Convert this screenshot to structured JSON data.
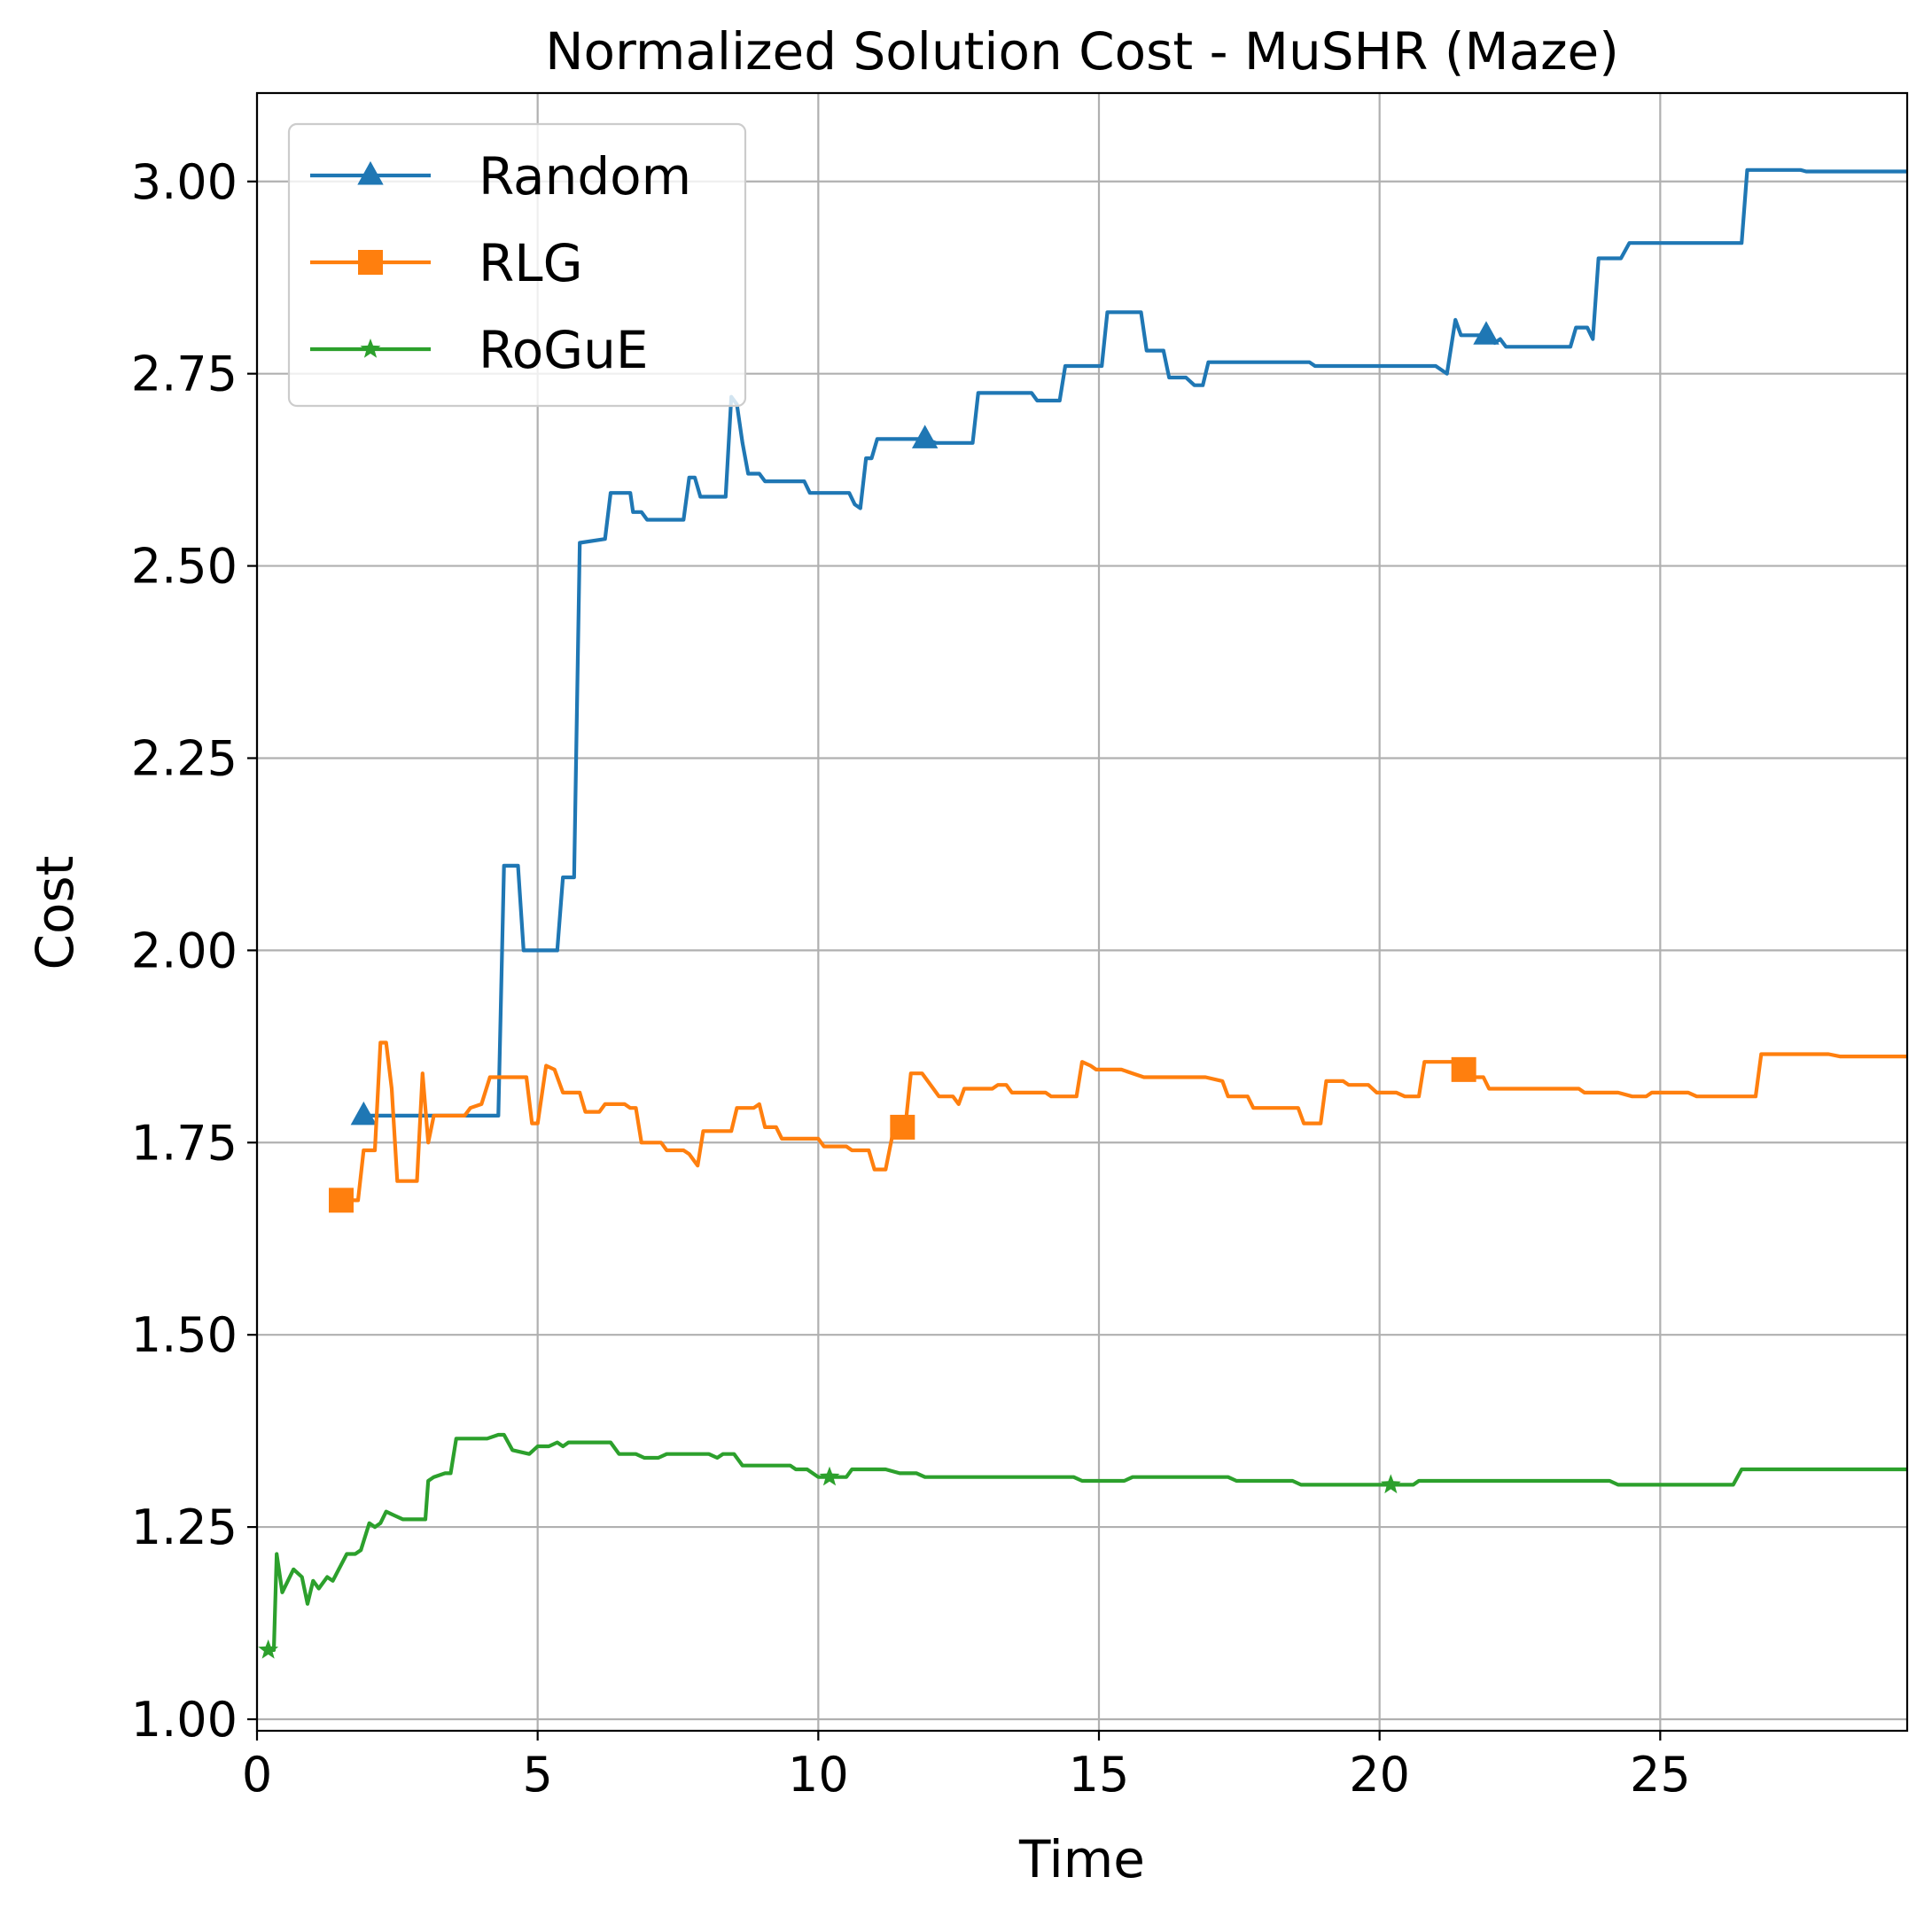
{
  "chart_data": {
    "type": "line",
    "title": "Normalized Solution Cost - MuSHR (Maze)",
    "xlabel": "Time",
    "ylabel": "Cost",
    "xlim": [
      0,
      29.4
    ],
    "ylim": [
      0.985,
      3.115
    ],
    "xticks": [
      0,
      5,
      10,
      15,
      20,
      25
    ],
    "xtick_labels": [
      "0",
      "5",
      "10",
      "15",
      "20",
      "25"
    ],
    "yticks": [
      1.0,
      1.25,
      1.5,
      1.75,
      2.0,
      2.25,
      2.5,
      2.75,
      3.0
    ],
    "ytick_labels": [
      "1.00",
      "1.25",
      "1.50",
      "1.75",
      "2.00",
      "2.25",
      "2.50",
      "2.75",
      "3.00"
    ],
    "grid": true,
    "legend_position": "top-left",
    "series": [
      {
        "name": "Random",
        "color": "#1f77b4",
        "marker": "triangle",
        "marker_x": [
          1.9,
          11.9,
          21.9
        ],
        "points": [
          [
            1.9,
            1.785
          ],
          [
            4.3,
            1.785
          ],
          [
            4.4,
            2.11
          ],
          [
            4.65,
            2.11
          ],
          [
            4.75,
            2.0
          ],
          [
            5.35,
            2.0
          ],
          [
            5.45,
            2.095
          ],
          [
            5.65,
            2.095
          ],
          [
            5.75,
            2.53
          ],
          [
            6.2,
            2.535
          ],
          [
            6.3,
            2.595
          ],
          [
            6.65,
            2.595
          ],
          [
            6.7,
            2.57
          ],
          [
            6.85,
            2.57
          ],
          [
            6.95,
            2.56
          ],
          [
            7.6,
            2.56
          ],
          [
            7.7,
            2.615
          ],
          [
            7.8,
            2.615
          ],
          [
            7.9,
            2.59
          ],
          [
            8.35,
            2.59
          ],
          [
            8.45,
            2.72
          ],
          [
            8.55,
            2.71
          ],
          [
            8.65,
            2.66
          ],
          [
            8.75,
            2.62
          ],
          [
            8.95,
            2.62
          ],
          [
            9.05,
            2.61
          ],
          [
            9.75,
            2.61
          ],
          [
            9.85,
            2.595
          ],
          [
            10.55,
            2.595
          ],
          [
            10.65,
            2.58
          ],
          [
            10.75,
            2.575
          ],
          [
            10.85,
            2.64
          ],
          [
            10.95,
            2.64
          ],
          [
            11.05,
            2.665
          ],
          [
            11.9,
            2.665
          ],
          [
            12.1,
            2.66
          ],
          [
            12.75,
            2.66
          ],
          [
            12.85,
            2.725
          ],
          [
            13.8,
            2.725
          ],
          [
            13.9,
            2.715
          ],
          [
            14.3,
            2.715
          ],
          [
            14.4,
            2.76
          ],
          [
            15.05,
            2.76
          ],
          [
            15.15,
            2.83
          ],
          [
            15.75,
            2.83
          ],
          [
            15.85,
            2.78
          ],
          [
            16.15,
            2.78
          ],
          [
            16.25,
            2.745
          ],
          [
            16.55,
            2.745
          ],
          [
            16.7,
            2.735
          ],
          [
            16.85,
            2.735
          ],
          [
            16.95,
            2.765
          ],
          [
            18.75,
            2.765
          ],
          [
            18.85,
            2.76
          ],
          [
            21.0,
            2.76
          ],
          [
            21.2,
            2.75
          ],
          [
            21.35,
            2.82
          ],
          [
            21.45,
            2.8
          ],
          [
            21.9,
            2.8
          ],
          [
            22.05,
            2.79
          ],
          [
            22.15,
            2.795
          ],
          [
            22.25,
            2.785
          ],
          [
            22.55,
            2.785
          ],
          [
            22.65,
            2.785
          ],
          [
            23.4,
            2.785
          ],
          [
            23.5,
            2.81
          ],
          [
            23.7,
            2.81
          ],
          [
            23.8,
            2.795
          ],
          [
            23.9,
            2.9
          ],
          [
            24.3,
            2.9
          ],
          [
            24.45,
            2.92
          ],
          [
            26.45,
            2.92
          ],
          [
            26.55,
            3.015
          ],
          [
            27.5,
            3.015
          ],
          [
            27.6,
            3.013
          ],
          [
            29.4,
            3.013
          ]
        ]
      },
      {
        "name": "RLG",
        "color": "#ff7f0e",
        "marker": "square",
        "marker_x": [
          1.5,
          11.5,
          21.5
        ],
        "points": [
          [
            1.5,
            1.675
          ],
          [
            1.7,
            1.675
          ],
          [
            1.8,
            1.675
          ],
          [
            1.9,
            1.74
          ],
          [
            2.1,
            1.74
          ],
          [
            2.2,
            1.88
          ],
          [
            2.3,
            1.88
          ],
          [
            2.4,
            1.82
          ],
          [
            2.5,
            1.7
          ],
          [
            2.75,
            1.7
          ],
          [
            2.85,
            1.7
          ],
          [
            2.95,
            1.84
          ],
          [
            3.05,
            1.75
          ],
          [
            3.15,
            1.785
          ],
          [
            3.7,
            1.785
          ],
          [
            3.8,
            1.795
          ],
          [
            4.0,
            1.8
          ],
          [
            4.15,
            1.835
          ],
          [
            4.8,
            1.835
          ],
          [
            4.9,
            1.775
          ],
          [
            5.0,
            1.775
          ],
          [
            5.15,
            1.85
          ],
          [
            5.3,
            1.845
          ],
          [
            5.45,
            1.815
          ],
          [
            5.75,
            1.815
          ],
          [
            5.85,
            1.79
          ],
          [
            6.1,
            1.79
          ],
          [
            6.2,
            1.8
          ],
          [
            6.55,
            1.8
          ],
          [
            6.65,
            1.795
          ],
          [
            6.75,
            1.795
          ],
          [
            6.85,
            1.75
          ],
          [
            7.2,
            1.75
          ],
          [
            7.3,
            1.74
          ],
          [
            7.6,
            1.74
          ],
          [
            7.7,
            1.735
          ],
          [
            7.85,
            1.72
          ],
          [
            7.95,
            1.765
          ],
          [
            8.45,
            1.765
          ],
          [
            8.55,
            1.795
          ],
          [
            8.85,
            1.795
          ],
          [
            8.95,
            1.8
          ],
          [
            9.05,
            1.77
          ],
          [
            9.25,
            1.77
          ],
          [
            9.35,
            1.755
          ],
          [
            10.0,
            1.755
          ],
          [
            10.1,
            1.745
          ],
          [
            10.5,
            1.745
          ],
          [
            10.6,
            1.74
          ],
          [
            10.9,
            1.74
          ],
          [
            11.0,
            1.715
          ],
          [
            11.2,
            1.715
          ],
          [
            11.35,
            1.77
          ],
          [
            11.55,
            1.77
          ],
          [
            11.65,
            1.84
          ],
          [
            11.85,
            1.84
          ],
          [
            12.05,
            1.82
          ],
          [
            12.15,
            1.81
          ],
          [
            12.4,
            1.81
          ],
          [
            12.5,
            1.8
          ],
          [
            12.6,
            1.82
          ],
          [
            13.1,
            1.82
          ],
          [
            13.2,
            1.825
          ],
          [
            13.35,
            1.825
          ],
          [
            13.45,
            1.815
          ],
          [
            14.05,
            1.815
          ],
          [
            14.15,
            1.81
          ],
          [
            14.6,
            1.81
          ],
          [
            14.7,
            1.855
          ],
          [
            14.85,
            1.85
          ],
          [
            14.95,
            1.845
          ],
          [
            15.4,
            1.845
          ],
          [
            15.6,
            1.84
          ],
          [
            15.8,
            1.835
          ],
          [
            16.9,
            1.835
          ],
          [
            17.2,
            1.83
          ],
          [
            17.3,
            1.81
          ],
          [
            17.65,
            1.81
          ],
          [
            17.75,
            1.795
          ],
          [
            18.55,
            1.795
          ],
          [
            18.65,
            1.775
          ],
          [
            18.95,
            1.775
          ],
          [
            19.05,
            1.83
          ],
          [
            19.35,
            1.83
          ],
          [
            19.45,
            1.825
          ],
          [
            19.8,
            1.825
          ],
          [
            19.95,
            1.815
          ],
          [
            20.3,
            1.815
          ],
          [
            20.45,
            1.81
          ],
          [
            20.7,
            1.81
          ],
          [
            20.8,
            1.855
          ],
          [
            21.45,
            1.855
          ],
          [
            21.55,
            1.835
          ],
          [
            21.85,
            1.835
          ],
          [
            21.95,
            1.82
          ],
          [
            23.55,
            1.82
          ],
          [
            23.65,
            1.815
          ],
          [
            24.25,
            1.815
          ],
          [
            24.5,
            1.81
          ],
          [
            24.75,
            1.81
          ],
          [
            24.85,
            1.815
          ],
          [
            25.35,
            1.815
          ],
          [
            25.5,
            1.815
          ],
          [
            25.65,
            1.81
          ],
          [
            26.1,
            1.81
          ],
          [
            26.25,
            1.81
          ],
          [
            26.7,
            1.81
          ],
          [
            26.8,
            1.865
          ],
          [
            28.0,
            1.865
          ],
          [
            28.2,
            1.862
          ],
          [
            29.4,
            1.862
          ]
        ]
      },
      {
        "name": "RoGuE",
        "color": "#2ca02c",
        "marker": "star",
        "marker_x": [
          0.2,
          10.2,
          20.2
        ],
        "points": [
          [
            0.2,
            1.09
          ],
          [
            0.3,
            1.09
          ],
          [
            0.35,
            1.215
          ],
          [
            0.45,
            1.165
          ],
          [
            0.65,
            1.195
          ],
          [
            0.8,
            1.185
          ],
          [
            0.9,
            1.15
          ],
          [
            1.0,
            1.18
          ],
          [
            1.1,
            1.17
          ],
          [
            1.25,
            1.185
          ],
          [
            1.35,
            1.18
          ],
          [
            1.6,
            1.215
          ],
          [
            1.75,
            1.215
          ],
          [
            1.85,
            1.22
          ],
          [
            2.0,
            1.255
          ],
          [
            2.1,
            1.25
          ],
          [
            2.2,
            1.255
          ],
          [
            2.3,
            1.27
          ],
          [
            2.45,
            1.265
          ],
          [
            2.6,
            1.26
          ],
          [
            2.85,
            1.26
          ],
          [
            3.0,
            1.26
          ],
          [
            3.05,
            1.31
          ],
          [
            3.15,
            1.315
          ],
          [
            3.35,
            1.32
          ],
          [
            3.45,
            1.32
          ],
          [
            3.55,
            1.365
          ],
          [
            3.75,
            1.365
          ],
          [
            4.1,
            1.365
          ],
          [
            4.3,
            1.37
          ],
          [
            4.4,
            1.37
          ],
          [
            4.55,
            1.35
          ],
          [
            4.85,
            1.345
          ],
          [
            5.0,
            1.355
          ],
          [
            5.2,
            1.355
          ],
          [
            5.35,
            1.36
          ],
          [
            5.45,
            1.355
          ],
          [
            5.55,
            1.36
          ],
          [
            6.3,
            1.36
          ],
          [
            6.45,
            1.345
          ],
          [
            6.75,
            1.345
          ],
          [
            6.9,
            1.34
          ],
          [
            7.15,
            1.34
          ],
          [
            7.3,
            1.345
          ],
          [
            8.05,
            1.345
          ],
          [
            8.2,
            1.34
          ],
          [
            8.3,
            1.345
          ],
          [
            8.5,
            1.345
          ],
          [
            8.65,
            1.33
          ],
          [
            9.5,
            1.33
          ],
          [
            9.6,
            1.325
          ],
          [
            9.8,
            1.325
          ],
          [
            10.0,
            1.315
          ],
          [
            10.3,
            1.315
          ],
          [
            10.5,
            1.315
          ],
          [
            10.6,
            1.325
          ],
          [
            11.2,
            1.325
          ],
          [
            11.45,
            1.32
          ],
          [
            11.75,
            1.32
          ],
          [
            11.9,
            1.315
          ],
          [
            12.5,
            1.315
          ],
          [
            14.55,
            1.315
          ],
          [
            14.7,
            1.31
          ],
          [
            15.3,
            1.31
          ],
          [
            15.45,
            1.31
          ],
          [
            15.6,
            1.315
          ],
          [
            17.3,
            1.315
          ],
          [
            17.45,
            1.31
          ],
          [
            18.45,
            1.31
          ],
          [
            18.6,
            1.305
          ],
          [
            19.2,
            1.305
          ],
          [
            20.2,
            1.305
          ],
          [
            20.6,
            1.305
          ],
          [
            20.7,
            1.31
          ],
          [
            24.1,
            1.31
          ],
          [
            24.25,
            1.305
          ],
          [
            26.3,
            1.305
          ],
          [
            26.45,
            1.325
          ],
          [
            29.4,
            1.325
          ]
        ]
      }
    ]
  }
}
